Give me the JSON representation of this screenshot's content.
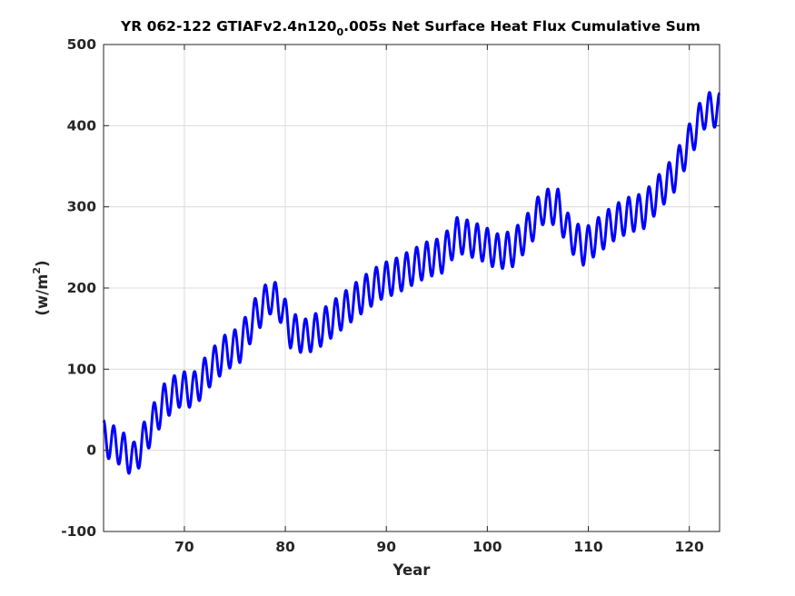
{
  "chart_data": {
    "type": "line",
    "title": {
      "prefix": "YR 062-122 GTIAFv2.4n120",
      "subscript": "0",
      "suffix": ".005s Net Surface Heat Flux  Cumulative Sum"
    },
    "xlabel": "Year",
    "ylabel": {
      "prefix": "(w/m",
      "superscript": "2",
      "suffix": ")"
    },
    "xlim": [
      62,
      123
    ],
    "ylim": [
      -100,
      500
    ],
    "x_ticks": [
      70,
      80,
      90,
      100,
      110,
      120
    ],
    "x_tick_labels": [
      "70",
      "80",
      "90",
      "100",
      "110",
      "120"
    ],
    "y_ticks": [
      -100,
      0,
      100,
      200,
      300,
      400,
      500
    ],
    "y_tick_labels": [
      "-100",
      "0",
      "100",
      "200",
      "300",
      "400",
      "500"
    ],
    "grid": true,
    "series": [
      {
        "color": "#0000ff",
        "seasonal_amplitude": 22,
        "trend": {
          "year": [
            62.0,
            63.5,
            65.0,
            66.5,
            68.0,
            69.5,
            71.0,
            72.5,
            74.0,
            75.5,
            77.0,
            78.5,
            79.5,
            80.5,
            82.0,
            83.5,
            85.0,
            86.5,
            88.0,
            89.5,
            91.0,
            92.5,
            94.0,
            95.5,
            97.0,
            98.0,
            99.5,
            101.0,
            102.5,
            104.0,
            105.5,
            107.0,
            108.0,
            109.5,
            111.0,
            112.5,
            114.0,
            115.5,
            117.0,
            118.5,
            120.0,
            121.5,
            122.5,
            123.0
          ],
          "mean": [
            15,
            5,
            -12,
            25,
            60,
            75,
            75,
            100,
            120,
            130,
            165,
            190,
            180,
            148,
            140,
            150,
            165,
            180,
            195,
            208,
            215,
            225,
            235,
            240,
            265,
            262,
            255,
            245,
            248,
            270,
            300,
            300,
            270,
            250,
            265,
            280,
            290,
            295,
            318,
            340,
            380,
            418,
            420,
            418
          ]
        }
      }
    ]
  }
}
